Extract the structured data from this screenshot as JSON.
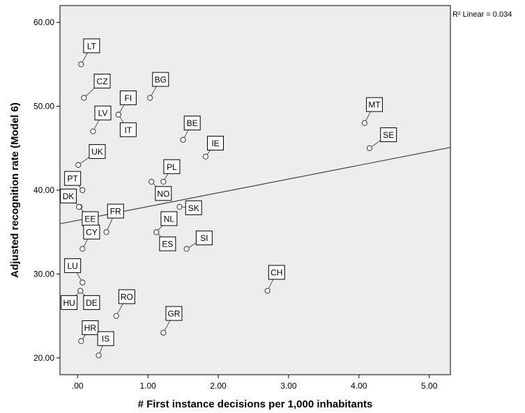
{
  "chart_data": {
    "type": "scatter",
    "xlabel": "# First instance decisions per 1,000 inhabitants",
    "ylabel": "Adjusted recognition rate (Model 6)",
    "xlim": [
      -0.25,
      5.3
    ],
    "ylim": [
      18.0,
      62.0
    ],
    "x_ticks": [
      0,
      1,
      2,
      3,
      4,
      5
    ],
    "x_tick_labels": [
      ".00",
      "1.00",
      "2.00",
      "3.00",
      "4.00",
      "5.00"
    ],
    "y_ticks": [
      20,
      30,
      40,
      50,
      60
    ],
    "y_tick_labels": [
      "20.00",
      "30.00",
      "40.00",
      "50.00",
      "60.00"
    ],
    "fit_line": {
      "type": "linear",
      "intercept": 36.4,
      "slope": 1.64,
      "r2_text": "R² Linear = 0.034"
    },
    "background": "#ededed",
    "marker_color": "#555555",
    "points": [
      {
        "label": "LT",
        "x": 0.05,
        "y": 55.0,
        "lx": 0.2,
        "ly": 57.2
      },
      {
        "label": "CZ",
        "x": 0.09,
        "y": 51.0,
        "lx": 0.35,
        "ly": 53.0
      },
      {
        "label": "BG",
        "x": 1.03,
        "y": 51.0,
        "lx": 1.18,
        "ly": 53.2
      },
      {
        "label": "FI",
        "x": 0.58,
        "y": 49.0,
        "lx": 0.72,
        "ly": 51.0
      },
      {
        "label": "IT",
        "x": 0.58,
        "y": 49.0,
        "lx": 0.72,
        "ly": 47.2
      },
      {
        "label": "LV",
        "x": 0.22,
        "y": 47.0,
        "lx": 0.36,
        "ly": 49.2
      },
      {
        "label": "MT",
        "x": 4.08,
        "y": 48.0,
        "lx": 4.22,
        "ly": 50.2
      },
      {
        "label": "BE",
        "x": 1.5,
        "y": 46.0,
        "lx": 1.63,
        "ly": 48.0
      },
      {
        "label": "SE",
        "x": 4.15,
        "y": 45.0,
        "lx": 4.42,
        "ly": 46.6
      },
      {
        "label": "IE",
        "x": 1.82,
        "y": 44.0,
        "lx": 1.96,
        "ly": 45.6
      },
      {
        "label": "UK",
        "x": 0.01,
        "y": 43.0,
        "lx": 0.28,
        "ly": 44.6
      },
      {
        "label": "PL",
        "x": 1.22,
        "y": 41.0,
        "lx": 1.34,
        "ly": 42.8
      },
      {
        "label": "PT",
        "x": 0.07,
        "y": 40.0,
        "lx": -0.07,
        "ly": 41.4
      },
      {
        "label": "NO",
        "x": 1.05,
        "y": 41.0,
        "lx": 1.22,
        "ly": 39.6
      },
      {
        "label": "DK",
        "x": 0.03,
        "y": 38.0,
        "lx": -0.13,
        "ly": 39.3
      },
      {
        "label": "SK",
        "x": 1.45,
        "y": 38.0,
        "lx": 1.65,
        "ly": 37.9
      },
      {
        "label": "FR",
        "x": 0.41,
        "y": 35.0,
        "lx": 0.54,
        "ly": 37.5
      },
      {
        "label": "EE",
        "x": 0.02,
        "y": 38.0,
        "lx": 0.18,
        "ly": 36.6
      },
      {
        "label": "NL",
        "x": 1.12,
        "y": 35.0,
        "lx": 1.3,
        "ly": 36.6
      },
      {
        "label": "CY",
        "x": 0.07,
        "y": 33.0,
        "lx": 0.2,
        "ly": 35.0
      },
      {
        "label": "SI",
        "x": 1.55,
        "y": 33.0,
        "lx": 1.8,
        "ly": 34.3
      },
      {
        "label": "ES",
        "x": 1.12,
        "y": 35.0,
        "lx": 1.28,
        "ly": 33.6
      },
      {
        "label": "LU",
        "x": 0.07,
        "y": 29.0,
        "lx": -0.07,
        "ly": 31.0
      },
      {
        "label": "CH",
        "x": 2.7,
        "y": 28.0,
        "lx": 2.83,
        "ly": 30.2
      },
      {
        "label": "RO",
        "x": 0.55,
        "y": 25.0,
        "lx": 0.7,
        "ly": 27.3
      },
      {
        "label": "HU",
        "x": 0.04,
        "y": 28.0,
        "lx": -0.12,
        "ly": 26.6
      },
      {
        "label": "DE",
        "x": 0.04,
        "y": 28.0,
        "lx": 0.2,
        "ly": 26.6
      },
      {
        "label": "GR",
        "x": 1.22,
        "y": 23.0,
        "lx": 1.37,
        "ly": 25.3
      },
      {
        "label": "HR",
        "x": 0.05,
        "y": 22.0,
        "lx": 0.18,
        "ly": 23.6
      },
      {
        "label": "IS",
        "x": 0.3,
        "y": 20.3,
        "lx": 0.4,
        "ly": 22.3
      }
    ]
  }
}
